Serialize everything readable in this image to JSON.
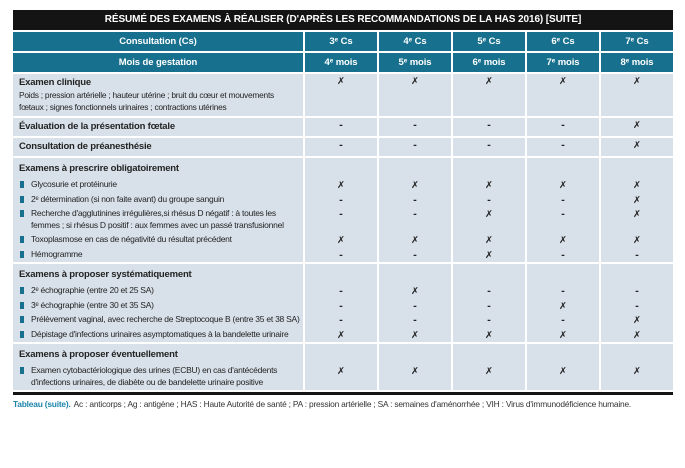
{
  "table": {
    "title": "RÉSUMÉ DES EXAMENS À RÉALISER (D'APRÈS LES RECOMMANDATIONS DE LA HAS 2016) [SUITE]",
    "header": {
      "consultation_label": "Consultation (Cs)",
      "consultations": [
        "3ᵉ Cs",
        "4ᵉ Cs",
        "5ᵉ Cs",
        "6ᵉ Cs",
        "7ᵉ Cs"
      ],
      "gestation_label": "Mois de gestation",
      "months": [
        "4ᵉ mois",
        "5ᵉ mois",
        "6ᵉ mois",
        "7ᵉ mois",
        "8ᵉ mois"
      ]
    },
    "mark_glyph": "✗",
    "dash_glyph": "-",
    "rows": [
      {
        "type": "item",
        "title": "Examen clinique",
        "desc": "Poids ; pression artérielle ; hauteur utérine ; bruit du cœur et mouvements fœtaux ; signes fonctionnels urinaires ; contractions utérines",
        "marks": [
          "✗",
          "✗",
          "✗",
          "✗",
          "✗"
        ]
      },
      {
        "type": "item",
        "title": "Évaluation de la présentation fœtale",
        "marks": [
          "-",
          "-",
          "-",
          "-",
          "✗"
        ]
      },
      {
        "type": "item",
        "title": "Consultation de préanesthésie",
        "marks": [
          "-",
          "-",
          "-",
          "-",
          "✗"
        ]
      },
      {
        "type": "section",
        "title": "Examens à prescrire obligatoirement",
        "items": [
          {
            "label": "Glycosurie et protéinurie",
            "marks": [
              "✗",
              "✗",
              "✗",
              "✗",
              "✗"
            ]
          },
          {
            "label": "2ᵉ détermination (si non faite avant) du groupe sanguin",
            "marks": [
              "-",
              "-",
              "-",
              "-",
              "✗"
            ]
          },
          {
            "label": "Recherche d'agglutinines irrégulières,si rhésus D négatif : à toutes les femmes ; si rhésus D positif : aux femmes avec un passé transfusionnel",
            "marks": [
              "-",
              "-",
              "✗",
              "-",
              "✗"
            ]
          },
          {
            "label": "Toxoplasmose en cas de négativité du résultat précédent",
            "marks": [
              "✗",
              "✗",
              "✗",
              "✗",
              "✗"
            ]
          },
          {
            "label": "Hémogramme",
            "marks": [
              "-",
              "-",
              "✗",
              "-",
              "-"
            ]
          }
        ]
      },
      {
        "type": "section",
        "title": "Examens à proposer systématiquement",
        "items": [
          {
            "label": "2ᵉ échographie (entre 20 et 25 SA)",
            "marks": [
              "-",
              "✗",
              "-",
              "-",
              "-"
            ]
          },
          {
            "label": "3ᵉ échographie (entre 30 et 35 SA)",
            "marks": [
              "-",
              "-",
              "-",
              "✗",
              "-"
            ]
          },
          {
            "label": "Prélèvement vaginal, avec recherche de Streptocoque B (entre 35 et 38 SA)",
            "marks": [
              "-",
              "-",
              "-",
              "-",
              "✗"
            ]
          },
          {
            "label": "Dépistage d'infections urinaires asymptomatiques à la bandelette urinaire",
            "marks": [
              "✗",
              "✗",
              "✗",
              "✗",
              "✗"
            ]
          }
        ]
      },
      {
        "type": "section",
        "title": "Examens à proposer éventuellement",
        "items": [
          {
            "label": "Examen cytobactériologique des urines (ECBU) en cas d'antécédents d'infections urinaires, de diabète ou de bandelette urinaire positive",
            "marks": [
              "✗",
              "✗",
              "✗",
              "✗",
              "✗"
            ]
          }
        ]
      }
    ]
  },
  "caption": {
    "lead": "Tableau (suite).",
    "text": "Ac : anticorps ; Ag : antigène ; HAS : Haute Autorité de santé ; PA : pression artérielle ; SA : semaines d'aménorrhée ; VIH : Virus d'immunodéficience humaine."
  },
  "colors": {
    "header_teal": "#17708e",
    "title_black": "#141414",
    "cell_blue": "#d8e1ea",
    "caption_teal": "#1e85ab"
  }
}
